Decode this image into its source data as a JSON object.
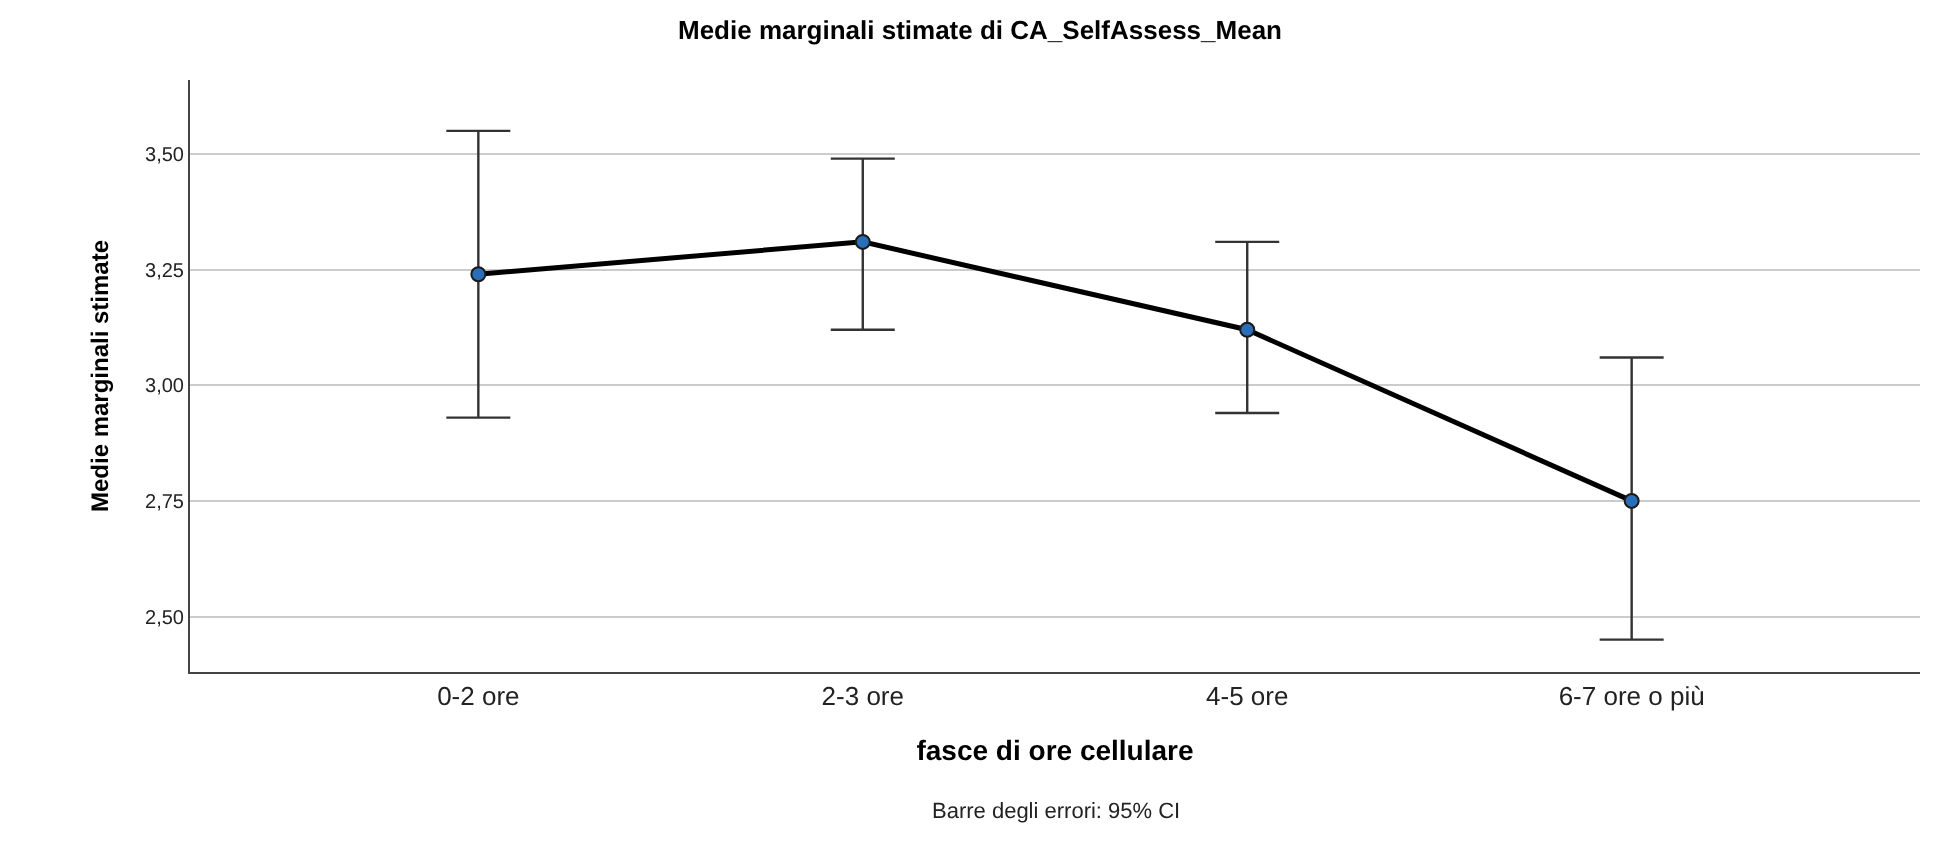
{
  "chart_data": {
    "type": "line",
    "title": "Medie marginali stimate di CA_SelfAssess_Mean",
    "xlabel": "fasce di ore cellulare",
    "ylabel": "Medie marginali stimate",
    "categories": [
      "0-2 ore",
      "2-3 ore",
      "4-5 ore",
      "6-7 ore o più"
    ],
    "series": [
      {
        "color": "#000000",
        "values": [
          3.24,
          3.31,
          3.12,
          2.75
        ],
        "errors": [
          [
            2.93,
            3.55
          ],
          [
            3.12,
            3.49
          ],
          [
            2.94,
            3.31
          ],
          [
            2.45,
            3.06
          ]
        ]
      }
    ],
    "ylim": [
      2.38,
      3.66
    ],
    "yticks": [
      {
        "value": 2.5,
        "label": "2,50"
      },
      {
        "value": 2.75,
        "label": "2,75"
      },
      {
        "value": 3.0,
        "label": "3,00"
      },
      {
        "value": 3.25,
        "label": "3,25"
      },
      {
        "value": 3.5,
        "label": "3,50"
      }
    ],
    "grid": "y",
    "marker": "circle",
    "line_style": "solid",
    "annotations": [
      "Barre degli errori: 95% CI"
    ]
  }
}
